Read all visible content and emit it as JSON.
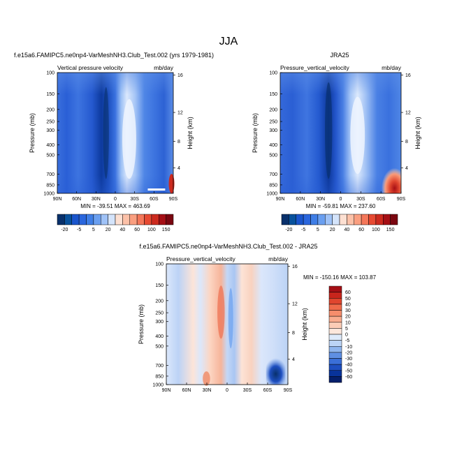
{
  "page": {
    "main_title": "JJA",
    "units": "mb/day",
    "y_title": "Pressure (mb)",
    "y2_title": "Height (km)"
  },
  "chart_data": [
    {
      "type": "heatmap",
      "title": "f.e15a6.FAMIPC5.ne0np4-VarMeshNH3.Club_Test.002 (yrs 1979-1981)",
      "subtitle_left": "Vertical pressure velocity",
      "subtitle_right": "mb/day",
      "stats": "MIN = -39.51   MAX = 463.69",
      "x_ticks": [
        "90N",
        "60N",
        "30N",
        "0",
        "30S",
        "60S",
        "90S"
      ],
      "y_ticks": [
        "100",
        "150",
        "200",
        "250",
        "300",
        "400",
        "500",
        "700",
        "850",
        "1000"
      ],
      "height_ticks": [
        "4",
        "8",
        "12",
        "16"
      ],
      "colorbar_labels": [
        "-20",
        "-5",
        "5",
        "20",
        "40",
        "60",
        "100",
        "150"
      ],
      "colors": [
        "#08306b",
        "#08519c",
        "#1a55cc",
        "#2a66dd",
        "#3f7ee6",
        "#6a9ff0",
        "#9fc2f7",
        "#d4e4fb",
        "#fde0d2",
        "#fcc1a8",
        "#fa9f80",
        "#f4775a",
        "#e74a32",
        "#cc2a1e",
        "#a50f15",
        "#7a0610"
      ]
    },
    {
      "type": "heatmap",
      "title": "JRA25",
      "subtitle_left": "Pressure_vertical_velocity",
      "subtitle_right": "mb/day",
      "stats": "MIN = -59.81   MAX = 237.60",
      "x_ticks": [
        "90N",
        "60N",
        "30N",
        "0",
        "30S",
        "60S",
        "90S"
      ],
      "y_ticks": [
        "100",
        "150",
        "200",
        "250",
        "300",
        "400",
        "500",
        "700",
        "850",
        "1000"
      ],
      "height_ticks": [
        "4",
        "8",
        "12",
        "16"
      ],
      "colorbar_labels": [
        "-20",
        "-5",
        "5",
        "20",
        "40",
        "60",
        "100",
        "150"
      ]
    },
    {
      "type": "heatmap",
      "title": "f.e15a6.FAMIPC5.ne0np4-VarMeshNH3.Club_Test.002 - JRA25",
      "subtitle_left": "Pressure_vertical_velocity",
      "subtitle_right": "mb/day",
      "stats": "MIN = -150.16   MAX = 103.87",
      "x_ticks": [
        "90N",
        "60N",
        "30N",
        "0",
        "30S",
        "60S",
        "90S"
      ],
      "y_ticks": [
        "100",
        "150",
        "200",
        "250",
        "300",
        "400",
        "500",
        "700",
        "850",
        "1000"
      ],
      "height_ticks": [
        "4",
        "8",
        "12",
        "16"
      ],
      "colorbar_labels": [
        "60",
        "50",
        "40",
        "30",
        "20",
        "10",
        "5",
        "0",
        "-5",
        "-10",
        "-20",
        "-30",
        "-40",
        "-50",
        "-60"
      ],
      "colors": [
        "#a50f15",
        "#c8251c",
        "#e0452e",
        "#ef6a4a",
        "#f68d6c",
        "#f9ac8f",
        "#fcccb6",
        "#fde7dc",
        "#deeafb",
        "#bcd4f6",
        "#8fb5ee",
        "#5f8fe3",
        "#3a6fd8",
        "#1e4fc0",
        "#08339a",
        "#051f6b"
      ]
    }
  ]
}
